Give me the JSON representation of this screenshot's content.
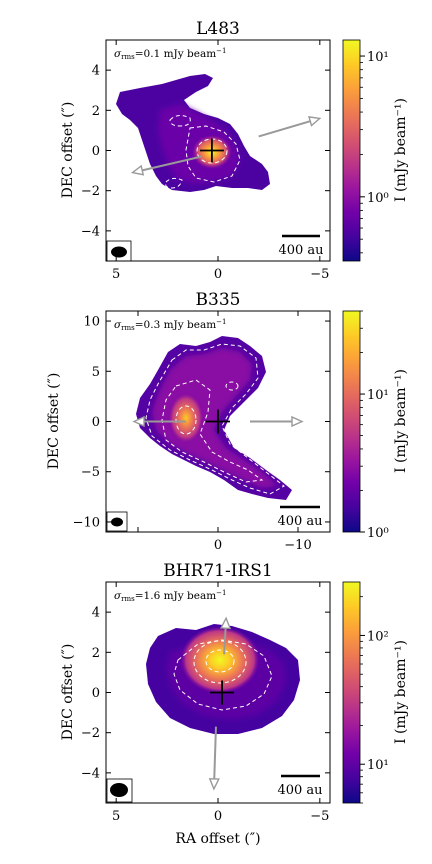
{
  "figure": {
    "xlabel": "RA offset (″)",
    "ylabel": "DEC offset (″)",
    "cbar_label": "I (mJy beam⁻¹)"
  },
  "colors": {
    "cmap": [
      "#0d0887",
      "#46039f",
      "#7201a8",
      "#9c179e",
      "#bd3786",
      "#d8576b",
      "#ed7953",
      "#fb9f3a",
      "#fdca26",
      "#f0f921"
    ],
    "contour": "#ffffff",
    "arrow": "#999999",
    "frame": "#000000"
  },
  "chart_data": [
    {
      "type": "heatmap",
      "title": "L483",
      "annotation": "σrms=0.1 mJy beam⁻¹",
      "scalebar": "400 au",
      "xlim": [
        5.5,
        -5.5
      ],
      "ylim": [
        -5.5,
        5.5
      ],
      "xticks": [
        5,
        0,
        -5
      ],
      "yticks": [
        4,
        2,
        0,
        -2,
        -4
      ],
      "cbar": {
        "scale": "log",
        "range": [
          0.35,
          13
        ],
        "ticks": [
          {
            "label": "10⁰",
            "v": 1
          },
          {
            "label": "10¹",
            "v": 10
          }
        ]
      },
      "peak": [
        0.3,
        0
      ],
      "outflow_arrows": [
        {
          "from": [
            -2,
            0.7
          ],
          "to": [
            -5,
            1.6
          ]
        },
        {
          "from": [
            0.8,
            -0.3
          ],
          "to": [
            4.2,
            -1.1
          ]
        }
      ]
    },
    {
      "type": "heatmap",
      "title": "B335",
      "annotation": "σrms=0.3 mJy beam⁻¹",
      "scalebar": "400 au",
      "xlim": [
        14,
        -14
      ],
      "ylim": [
        -11,
        11
      ],
      "xticks": [
        10,
        0,
        -10
      ],
      "yticks": [
        10,
        5,
        0,
        -5,
        -10
      ],
      "xticklabels": [
        "",
        "0",
        "−10"
      ],
      "cbar": {
        "scale": "log",
        "range": [
          1,
          40
        ],
        "ticks": [
          {
            "label": "10⁰",
            "v": 1
          },
          {
            "label": "10¹",
            "v": 10
          }
        ]
      },
      "peak": [
        0,
        0
      ],
      "outflow_arrows": [
        {
          "from": [
            -4,
            0
          ],
          "to": [
            -10.5,
            0
          ]
        },
        {
          "from": [
            4,
            0
          ],
          "to": [
            10.5,
            0
          ]
        }
      ]
    },
    {
      "type": "heatmap",
      "title": "BHR71-IRS1",
      "annotation": "σrms=1.6 mJy beam⁻¹",
      "scalebar": "400 au",
      "xlim": [
        5.5,
        -5.5
      ],
      "ylim": [
        -5.5,
        5.5
      ],
      "xticks": [
        5,
        0,
        -5
      ],
      "yticks": [
        4,
        2,
        0,
        -2,
        -4
      ],
      "cbar": {
        "scale": "log",
        "range": [
          5,
          260
        ],
        "ticks": [
          {
            "label": "10¹",
            "v": 10
          },
          {
            "label": "10²",
            "v": 100
          }
        ]
      },
      "peak": [
        -0.2,
        0
      ],
      "outflow_arrows": [
        {
          "from": [
            -0.3,
            1.9
          ],
          "to": [
            -0.4,
            3.7
          ]
        },
        {
          "from": [
            0.1,
            -1.7
          ],
          "to": [
            0.2,
            -4.8
          ]
        }
      ]
    }
  ]
}
